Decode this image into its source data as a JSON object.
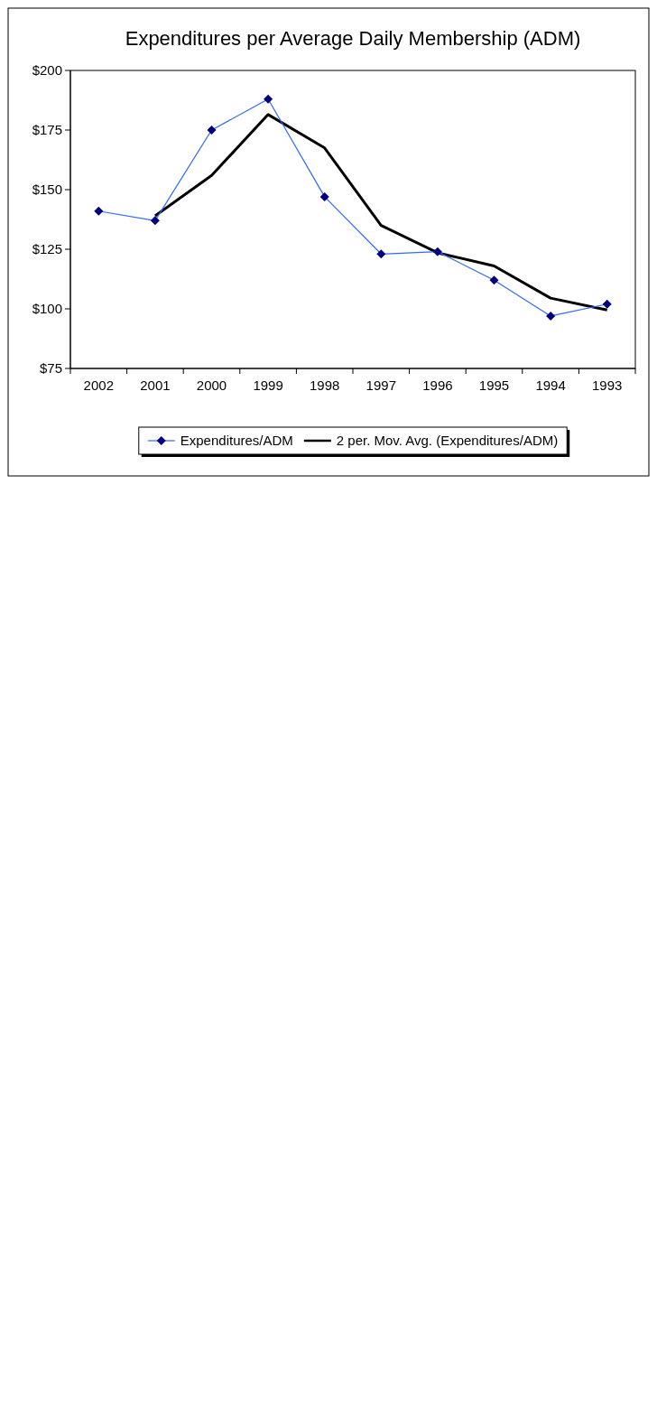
{
  "chart_data": {
    "type": "line",
    "title": "Expenditures per Average Daily Membership (ADM)",
    "categories": [
      "2002",
      "2001",
      "2000",
      "1999",
      "1998",
      "1997",
      "1996",
      "1995",
      "1994",
      "1993"
    ],
    "series": [
      {
        "name": "Expenditures/ADM",
        "color": "#3366ff",
        "marker": "diamond",
        "values": [
          141,
          137,
          175,
          188,
          147,
          123,
          124,
          112,
          97,
          102
        ]
      },
      {
        "name": "2 per. Mov. Avg. (Expenditures/ADM)",
        "color": "#000000",
        "marker": "none",
        "values": [
          null,
          139,
          156,
          181.5,
          167.5,
          135,
          123.5,
          118,
          104.5,
          99.5
        ]
      }
    ],
    "ylim": [
      75,
      200
    ],
    "yticks": [
      {
        "value": 75,
        "label": "$75"
      },
      {
        "value": 100,
        "label": "$100"
      },
      {
        "value": 125,
        "label": "$125"
      },
      {
        "value": 150,
        "label": "$150"
      },
      {
        "value": 175,
        "label": "$175"
      },
      {
        "value": 200,
        "label": "$200"
      }
    ],
    "grid": false,
    "legend": "bottom"
  }
}
